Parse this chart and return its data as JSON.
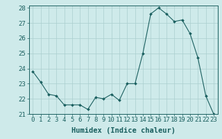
{
  "x": [
    0,
    1,
    2,
    3,
    4,
    5,
    6,
    7,
    8,
    9,
    10,
    11,
    12,
    13,
    14,
    15,
    16,
    17,
    18,
    19,
    20,
    21,
    22,
    23
  ],
  "y": [
    23.8,
    23.1,
    22.3,
    22.2,
    21.6,
    21.6,
    21.6,
    21.3,
    22.1,
    22.0,
    22.3,
    21.9,
    23.0,
    23.0,
    25.0,
    27.6,
    28.0,
    27.6,
    27.1,
    27.2,
    26.3,
    24.7,
    22.2,
    21.0
  ],
  "line_color": "#1a5f5f",
  "marker": "D",
  "marker_size": 2.0,
  "bg_color": "#ceeaea",
  "grid_color": "#aacece",
  "xlabel": "Humidex (Indice chaleur)",
  "ylim": [
    21,
    28
  ],
  "xlim": [
    -0.5,
    23.5
  ],
  "yticks": [
    21,
    22,
    23,
    24,
    25,
    26,
    27,
    28
  ],
  "xticks": [
    0,
    1,
    2,
    3,
    4,
    5,
    6,
    7,
    8,
    9,
    10,
    11,
    12,
    13,
    14,
    15,
    16,
    17,
    18,
    19,
    20,
    21,
    22,
    23
  ],
  "tick_label_fontsize": 6.5,
  "xlabel_fontsize": 7.5
}
